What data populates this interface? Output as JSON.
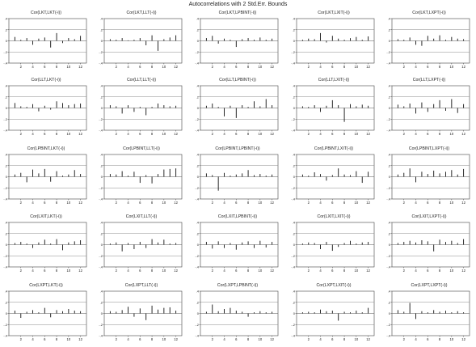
{
  "title": "Autocorrelations with 2 Std.Err. Bounds",
  "colors": {
    "bar": "#111111",
    "bound": "#8a8a8a",
    "zero": "#555555",
    "axis": "#444444",
    "text": "#222222"
  },
  "chart_data": {
    "type": "bar",
    "grid": true,
    "layout": "5x5 panel grid",
    "xticks": [
      2,
      4,
      6,
      8,
      10,
      12
    ],
    "yticks": [
      ".4",
      ".2",
      "0",
      "-.2",
      "-.4"
    ],
    "ylim": [
      -0.4,
      0.4
    ],
    "bounds": [
      0.2,
      -0.2
    ],
    "panels": [
      {
        "title": "Cor(LKT,LKT(-i))",
        "values": [
          0.07,
          0.02,
          0.05,
          -0.07,
          0.04,
          0.06,
          -0.12,
          0.14,
          -0.04,
          0.05,
          0.03,
          0.09
        ]
      },
      {
        "title": "Cor(LKT,LLT(-i))",
        "values": [
          0.03,
          0.02,
          0.05,
          0.01,
          0.02,
          0.05,
          -0.08,
          0.1,
          -0.18,
          0.03,
          0.06,
          0.1
        ]
      },
      {
        "title": "Cor(LKT,LPBINT(-i))",
        "values": [
          0.05,
          0.09,
          -0.05,
          0.04,
          0.02,
          -0.11,
          0.03,
          0.05,
          0.02,
          0.06,
          0.02,
          0.04
        ]
      },
      {
        "title": "Cor(LKT,LXIT(-i))",
        "values": [
          0.02,
          0.04,
          0.03,
          0.14,
          -0.03,
          0.09,
          0.04,
          0.02,
          0.05,
          0.07,
          0.02,
          0.08
        ]
      },
      {
        "title": "Cor(LKT,LXPT(-i))",
        "values": [
          0.03,
          0.02,
          0.06,
          -0.07,
          -0.09,
          0.09,
          0.04,
          0.1,
          0.02,
          0.07,
          0.04,
          0.03
        ]
      },
      {
        "title": "Cor(LLT,LKT(-i))",
        "values": [
          0.09,
          0.03,
          0.02,
          0.07,
          -0.06,
          0.04,
          -0.03,
          0.12,
          0.09,
          0.05,
          0.07,
          0.08
        ]
      },
      {
        "title": "Cor(LLT,LLT(-i))",
        "values": [
          0.05,
          0.03,
          -0.1,
          0.05,
          -0.07,
          0.02,
          -0.13,
          0.02,
          0.08,
          0.05,
          0.03,
          0.04
        ]
      },
      {
        "title": "Cor(LLT,LPBINT(-i))",
        "values": [
          0.04,
          0.08,
          0.02,
          -0.15,
          0.04,
          -0.18,
          0.05,
          0.02,
          0.12,
          0.03,
          0.16,
          0.05
        ]
      },
      {
        "title": "Cor(LLT,LXIT(-i))",
        "values": [
          0.03,
          0.02,
          0.05,
          -0.07,
          0.04,
          0.14,
          0.05,
          -0.25,
          0.07,
          0.03,
          0.06,
          0.04
        ]
      },
      {
        "title": "Cor(LLT,LXPT(-i))",
        "values": [
          0.06,
          0.03,
          0.08,
          -0.1,
          0.1,
          -0.07,
          0.07,
          0.14,
          -0.05,
          0.16,
          -0.09,
          0.07
        ]
      },
      {
        "title": "Cor(LPBINT,LKT(-i))",
        "values": [
          0.04,
          0.07,
          -0.1,
          0.13,
          0.06,
          0.14,
          -0.09,
          0.1,
          0.02,
          0.04,
          0.12,
          0.05
        ]
      },
      {
        "title": "Cor(LPBINT,LLT(-i))",
        "values": [
          0.05,
          0.04,
          0.1,
          0.02,
          0.09,
          -0.11,
          0.03,
          -0.12,
          0.05,
          0.13,
          0.14,
          0.15
        ]
      },
      {
        "title": "Cor(LPBINT,LPBINT(-i))",
        "values": [
          0.06,
          0.03,
          -0.25,
          0.07,
          0.02,
          0.04,
          0.06,
          0.12,
          0.03,
          0.05,
          0.02,
          0.04
        ]
      },
      {
        "title": "Cor(LPBINT,LXIT(-i))",
        "values": [
          0.04,
          0.02,
          0.08,
          0.05,
          -0.07,
          0.03,
          0.15,
          0.04,
          0.03,
          0.1,
          -0.11,
          0.09
        ]
      },
      {
        "title": "Cor(LPBINT,LXPT(-i))",
        "values": [
          0.04,
          0.07,
          0.15,
          -0.1,
          0.09,
          0.05,
          0.11,
          0.06,
          0.09,
          0.12,
          0.04,
          0.14
        ]
      },
      {
        "title": "Cor(LXIT,LKT(-i))",
        "values": [
          0.03,
          0.05,
          0.02,
          -0.06,
          0.04,
          0.09,
          0.02,
          0.1,
          -0.1,
          0.04,
          0.06,
          0.08
        ]
      },
      {
        "title": "Cor(LXIT,LLT(-i))",
        "values": [
          0.02,
          0.04,
          -0.12,
          0.03,
          -0.08,
          0.05,
          -0.06,
          0.1,
          0.04,
          0.09,
          0.02,
          0.03
        ]
      },
      {
        "title": "Cor(LXIT,LPBINT(-i))",
        "values": [
          0.05,
          -0.07,
          0.06,
          -0.06,
          0.03,
          -0.09,
          0.04,
          0.06,
          -0.06,
          0.07,
          -0.05,
          0.05
        ]
      },
      {
        "title": "Cor(LXIT,LXIT(-i))",
        "values": [
          0.02,
          0.04,
          0.03,
          -0.08,
          0.05,
          -0.11,
          -0.04,
          0.03,
          0.07,
          0.02,
          0.04,
          0.05
        ]
      },
      {
        "title": "Cor(LXIT,LXPT(-i))",
        "values": [
          0.03,
          0.05,
          0.07,
          0.04,
          0.08,
          0.06,
          -0.12,
          0.09,
          0.05,
          0.07,
          0.03,
          0.1
        ]
      },
      {
        "title": "Cor(LXPT,LKT(-i))",
        "values": [
          0.05,
          -0.08,
          0.03,
          0.06,
          0.02,
          0.1,
          -0.07,
          0.06,
          0.04,
          0.08,
          0.05,
          0.04
        ]
      },
      {
        "title": "Cor(LXPT,LLT(-i))",
        "values": [
          0.04,
          0.03,
          0.06,
          0.12,
          -0.06,
          0.09,
          -0.12,
          0.14,
          0.07,
          0.1,
          0.11,
          0.05
        ]
      },
      {
        "title": "Cor(LXPT,LPBINT(-i))",
        "values": [
          0.03,
          0.16,
          0.04,
          0.08,
          0.1,
          0.05,
          0.03,
          -0.06,
          0.02,
          0.04,
          0.02,
          0.03
        ]
      },
      {
        "title": "Cor(LXPT,LXIT(-i))",
        "values": [
          0.02,
          0.03,
          0.02,
          0.07,
          0.04,
          0.05,
          -0.13,
          0.03,
          0.02,
          0.05,
          0.02,
          0.1
        ]
      },
      {
        "title": "Cor(LXPT,LXPT(-i))",
        "values": [
          0.06,
          0.03,
          0.19,
          -0.1,
          0.04,
          0.02,
          0.06,
          0.03,
          0.05,
          0.02,
          0.04,
          0.02
        ]
      }
    ]
  }
}
